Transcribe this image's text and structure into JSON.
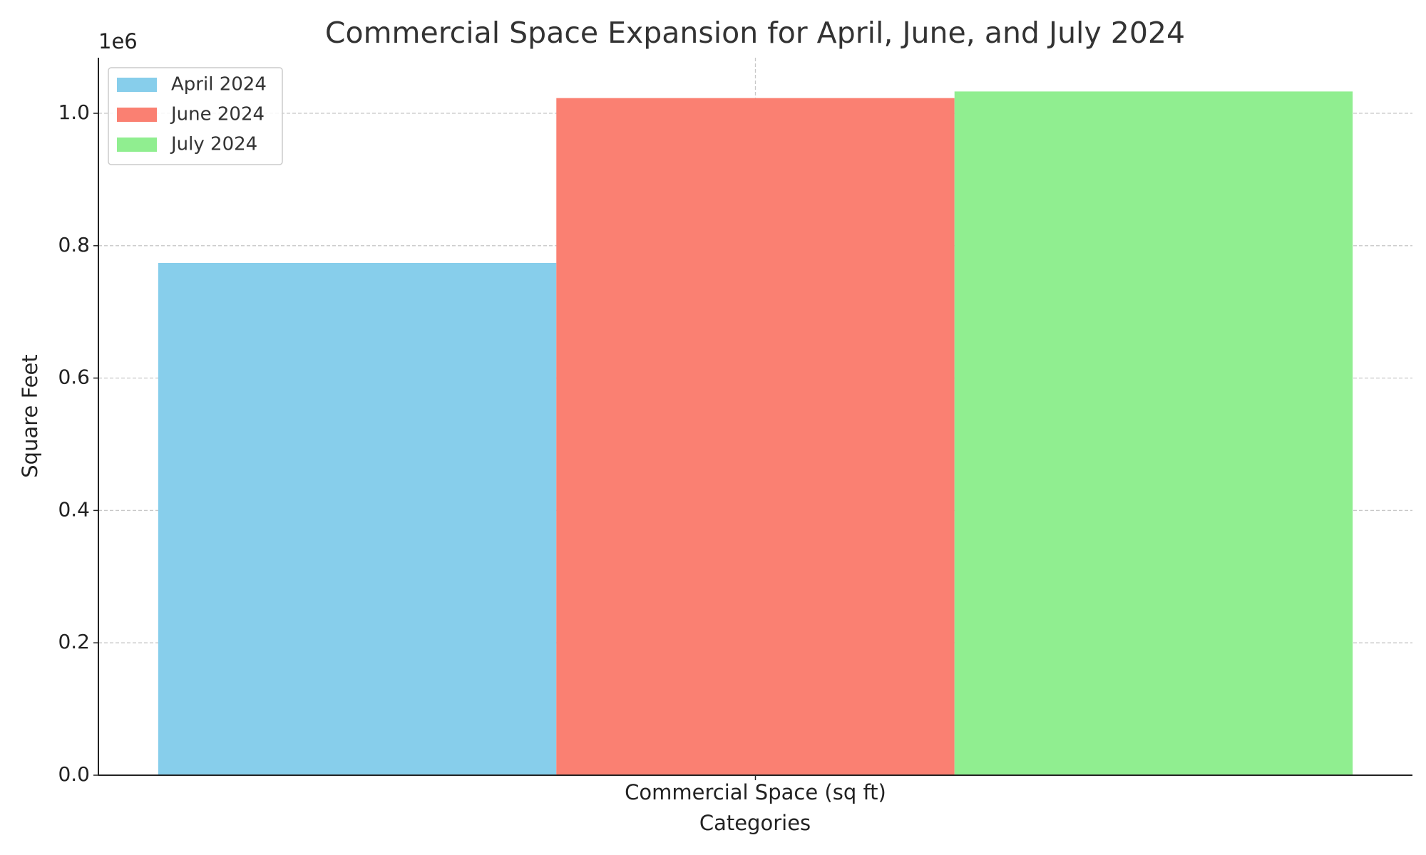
{
  "chart_data": {
    "type": "bar",
    "title": "Commercial Space Expansion for April, June, and July 2024",
    "xlabel": "Categories",
    "ylabel": "Square Feet",
    "y_offset_label": "1e6",
    "categories": [
      "Commercial Space (sq ft)"
    ],
    "series": [
      {
        "name": "April 2024",
        "color": "#87ceeb",
        "values": [
          774000
        ]
      },
      {
        "name": "June 2024",
        "color": "#fa8072",
        "values": [
          1023000
        ]
      },
      {
        "name": "July 2024",
        "color": "#90ee90",
        "values": [
          1033000
        ]
      }
    ],
    "ylim": [
      0,
      1084000
    ],
    "yticks": [
      {
        "value": 0,
        "label": "0.0"
      },
      {
        "value": 200000,
        "label": "0.2"
      },
      {
        "value": 400000,
        "label": "0.4"
      },
      {
        "value": 600000,
        "label": "0.6"
      },
      {
        "value": 800000,
        "label": "0.8"
      },
      {
        "value": 1000000,
        "label": "1.0"
      }
    ],
    "grid": true,
    "legend": "upper left"
  }
}
